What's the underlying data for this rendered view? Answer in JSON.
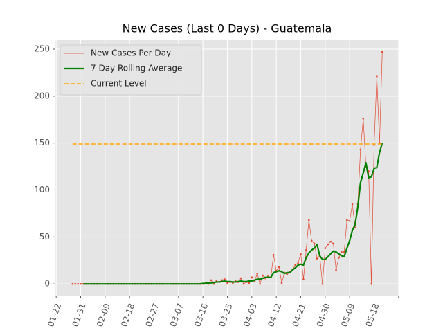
{
  "chart_data": {
    "type": "line",
    "title": "New Cases (Last 0 Days) - Guatemala",
    "categories": [
      "01-22",
      null,
      null,
      null,
      null,
      null,
      null,
      null,
      null,
      "01-31",
      null,
      null,
      null,
      null,
      null,
      null,
      null,
      null,
      "02-09",
      null,
      null,
      null,
      null,
      null,
      null,
      null,
      null,
      "02-18",
      null,
      null,
      null,
      null,
      null,
      null,
      null,
      null,
      "02-27",
      null,
      null,
      null,
      null,
      null,
      null,
      null,
      null,
      "03-07",
      null,
      null,
      null,
      null,
      null,
      null,
      null,
      null,
      "03-16",
      null,
      null,
      null,
      null,
      null,
      null,
      null,
      null,
      "03-25",
      null,
      null,
      null,
      null,
      null,
      null,
      null,
      null,
      "04-03",
      null,
      null,
      null,
      null,
      null,
      null,
      null,
      null,
      "04-12",
      null,
      null,
      null,
      null,
      null,
      null,
      null,
      null,
      "04-21",
      null,
      null,
      null,
      null,
      null,
      null,
      null,
      null,
      "04-30",
      null,
      null,
      null,
      null,
      null,
      null,
      null,
      null,
      "05-09",
      null,
      null,
      null,
      null,
      null,
      null,
      null,
      null,
      "05-18",
      null,
      null,
      null,
      null,
      null,
      null,
      null,
      null,
      null
    ],
    "xticks": [
      0,
      9,
      18,
      27,
      36,
      45,
      54,
      63,
      72,
      81,
      90,
      99,
      108,
      117,
      126
    ],
    "xlim": [
      -0.3,
      126.3
    ],
    "ylim": [
      -12.4,
      259.6
    ],
    "yticks": [
      0,
      50,
      100,
      150,
      200,
      250
    ],
    "grid": true,
    "legend": "upper left",
    "series": [
      {
        "name": "New Cases Per Day",
        "color": "#e24a33",
        "marker": true,
        "values": [
          null,
          null,
          null,
          null,
          null,
          null,
          0,
          0,
          0,
          0,
          0,
          0,
          0,
          0,
          0,
          0,
          0,
          0,
          0,
          0,
          0,
          0,
          0,
          0,
          0,
          0,
          0,
          0,
          0,
          0,
          0,
          0,
          0,
          0,
          0,
          0,
          0,
          0,
          0,
          0,
          0,
          0,
          0,
          0,
          0,
          0,
          0,
          0,
          0,
          0,
          0,
          0,
          0,
          0,
          0,
          1,
          0,
          4,
          0,
          3,
          2,
          4,
          5,
          1,
          2,
          1,
          3,
          2,
          6,
          0,
          2,
          1,
          7,
          3,
          11,
          0,
          9,
          6,
          8,
          7,
          31,
          14,
          18,
          1,
          12,
          10,
          13,
          15,
          20,
          22,
          32,
          5,
          36,
          68,
          46,
          43,
          27,
          30,
          0,
          38,
          42,
          45,
          43,
          15,
          28,
          34,
          34,
          68,
          67,
          85,
          60,
          85,
          143,
          176,
          125,
          120,
          0,
          148,
          221,
          150,
          247,
          null,
          null,
          null,
          null,
          null,
          null
        ]
      },
      {
        "name": "7 Day Rolling Average",
        "color": "#008000",
        "values": [
          null,
          null,
          null,
          null,
          null,
          null,
          null,
          null,
          null,
          null,
          0,
          0,
          0,
          0,
          0,
          0,
          0,
          0,
          0,
          0,
          0,
          0,
          0,
          0,
          0,
          0,
          0,
          0,
          0,
          0,
          0,
          0,
          0,
          0,
          0,
          0,
          0,
          0,
          0,
          0,
          0,
          0,
          0,
          0,
          0,
          0,
          0,
          0,
          0,
          0,
          0,
          0,
          0,
          0,
          0.5,
          0.5,
          1,
          1,
          1.5,
          2,
          2,
          2.5,
          3,
          2.5,
          2.5,
          2,
          2,
          2.5,
          3,
          2.5,
          2.5,
          3,
          3,
          4,
          5,
          5,
          6,
          7,
          7,
          7,
          12,
          13,
          14,
          13,
          11,
          12,
          12,
          15,
          17,
          20,
          21,
          20,
          28,
          33,
          36,
          38,
          42,
          30,
          26,
          26,
          29,
          32,
          35,
          34,
          32,
          30,
          29,
          38,
          46,
          57,
          63,
          82,
          108,
          118,
          129,
          113,
          114,
          123,
          124,
          140,
          150,
          null,
          null,
          null,
          null,
          null,
          null
        ]
      },
      {
        "name": "Current Level",
        "color": "#ffa500",
        "dashed": true,
        "value": 149
      }
    ]
  }
}
